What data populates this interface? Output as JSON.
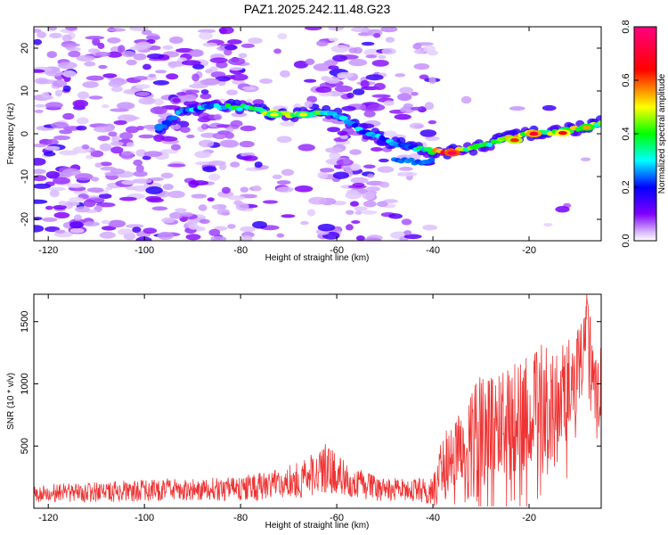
{
  "figure_title": "PAZ1.2025.242.11.48.G23",
  "chart_data": [
    {
      "type": "heatmap",
      "title": "PAZ1.2025.242.11.48.G23",
      "xlabel": "Height of straight line (km)",
      "ylabel": "Frequency (Hz)",
      "xlim": [
        -123,
        -5
      ],
      "ylim": [
        -25,
        25
      ],
      "x_ticks": [
        -120,
        -100,
        -80,
        -60,
        -40,
        -20
      ],
      "y_ticks": [
        -20,
        -10,
        0,
        10,
        20
      ],
      "colorbar": {
        "label": "Normalized spectral amplitude",
        "range": [
          0,
          0.8
        ],
        "ticks": [
          0.0,
          0.2,
          0.4,
          0.6,
          0.8
        ],
        "tick_labels": [
          "0.0",
          "0.2",
          "0.4",
          "0.6",
          "0.8"
        ],
        "colors": [
          "#ffffff",
          "#8000ff",
          "#0000ff",
          "#00ffff",
          "#00ff00",
          "#ffff00",
          "#ff0000",
          "#ff0080"
        ]
      },
      "ridge": {
        "description": "dominant frequency track",
        "x": [
          -97,
          -92,
          -85,
          -78,
          -72,
          -66,
          -61,
          -55,
          -49,
          -43,
          -38,
          -32,
          -26,
          -20,
          -14,
          -8,
          -5
        ],
        "freq": [
          1,
          5.5,
          6.5,
          6,
          4.5,
          4.5,
          5,
          1,
          -2,
          -3.5,
          -4.5,
          -3.5,
          -1.5,
          0,
          0.5,
          1.5,
          2.5
        ],
        "amplitude": [
          0.25,
          0.3,
          0.35,
          0.45,
          0.5,
          0.45,
          0.4,
          0.3,
          0.3,
          0.35,
          0.7,
          0.45,
          0.5,
          0.6,
          0.55,
          0.5,
          0.45
        ]
      }
    },
    {
      "type": "line",
      "xlabel": "Height of straight line (km)",
      "ylabel": "SNR (10 * v/v)",
      "xlim": [
        -123,
        -5
      ],
      "ylim": [
        0,
        1720
      ],
      "x_ticks": [
        -120,
        -100,
        -80,
        -60,
        -40,
        -20
      ],
      "y_ticks": [
        500,
        1000,
        1500
      ],
      "series": [
        {
          "name": "SNR",
          "color": "#ee3333",
          "envelope_x": [
            -123,
            -110,
            -100,
            -90,
            -80,
            -72,
            -66,
            -62,
            -58,
            -52,
            -45,
            -40,
            -38,
            -35,
            -32,
            -30,
            -27,
            -24,
            -20,
            -16,
            -13,
            -10,
            -9,
            -8,
            -7,
            -6,
            -5
          ],
          "envelope_mean": [
            120,
            130,
            140,
            150,
            160,
            190,
            250,
            330,
            220,
            160,
            140,
            150,
            350,
            500,
            550,
            750,
            650,
            700,
            800,
            850,
            900,
            1050,
            1300,
            1500,
            1150,
            900,
            950
          ],
          "envelope_amp": [
            70,
            80,
            90,
            90,
            100,
            120,
            160,
            200,
            140,
            100,
            90,
            120,
            220,
            300,
            380,
            450,
            420,
            450,
            500,
            480,
            450,
            350,
            300,
            250,
            320,
            280,
            350
          ]
        }
      ]
    }
  ]
}
